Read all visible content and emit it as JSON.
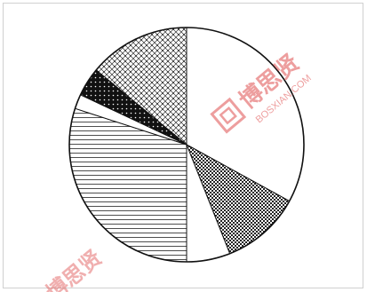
{
  "chart_data": {
    "type": "pie",
    "title": "",
    "start_angle_deg": 0,
    "direction": "clockwise",
    "slices": [
      {
        "value": 33,
        "pattern": "blank"
      },
      {
        "value": 11,
        "pattern": "crosshatch-dense"
      },
      {
        "value": 6,
        "pattern": "blank"
      },
      {
        "value": 30,
        "pattern": "horizontal-lines"
      },
      {
        "value": 2,
        "pattern": "blank"
      },
      {
        "value": 4,
        "pattern": "solid-dots"
      },
      {
        "value": 14,
        "pattern": "crosshatch-light"
      }
    ],
    "colors": {
      "stroke": "#111111",
      "fill": "#ffffff"
    }
  },
  "watermark": {
    "brand": "博思贤",
    "site": "BOSXIAN.COM",
    "color": "#e05050",
    "icon": "bosxian-logo-icon"
  }
}
